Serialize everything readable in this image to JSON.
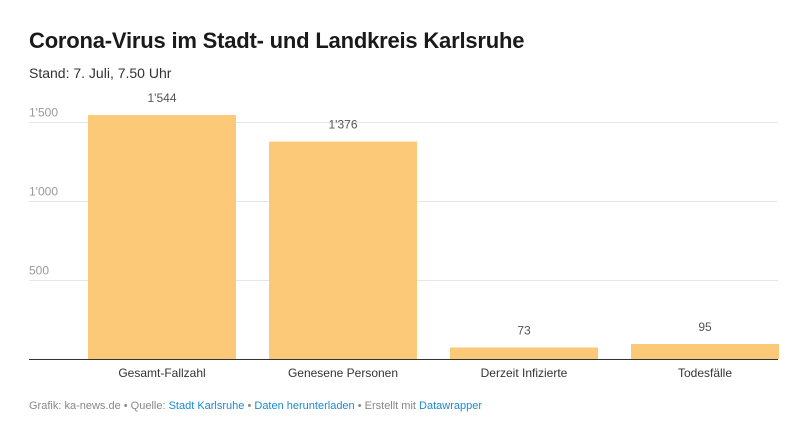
{
  "header": {
    "title": "Corona-Virus im Stadt- und Landkreis Karlsruhe",
    "subtitle": "Stand: 7. Juli, 7.50 Uhr"
  },
  "chart_data": {
    "type": "bar",
    "categories": [
      "Gesamt-Fallzahl",
      "Genesene Personen",
      "Derzeit Infizierte",
      "Todesfälle"
    ],
    "values": [
      1544,
      1376,
      73,
      95
    ],
    "value_labels": [
      "1'544",
      "1'376",
      "73",
      "95"
    ],
    "yticks": [
      500,
      1000,
      1500
    ],
    "ytick_labels": [
      "500",
      "1'000",
      "1'500"
    ],
    "ylim": [
      0,
      1500
    ],
    "bar_color": "#fcc978",
    "title": "Corona-Virus im Stadt- und Landkreis Karlsruhe",
    "xlabel": "",
    "ylabel": ""
  },
  "footer": {
    "prefix": "Grafik: ka-news.de • Quelle: ",
    "source": "Stadt Karlsruhe",
    "sep1": " • ",
    "download": "Daten herunterladen",
    "sep2": " • Erstellt mit ",
    "tool": "Datawrapper"
  }
}
